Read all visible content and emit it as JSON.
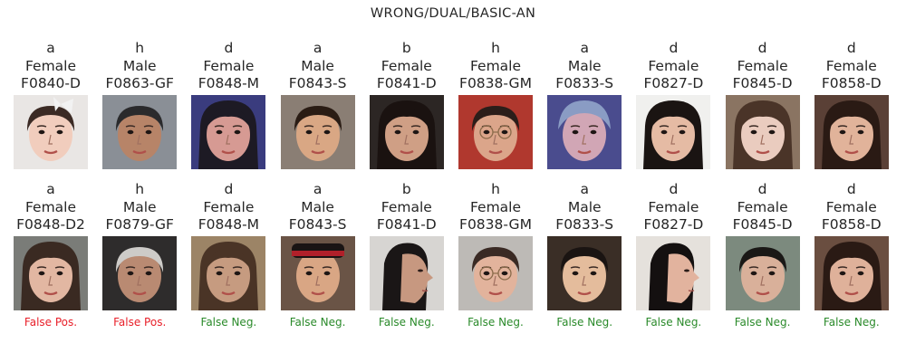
{
  "title": "WRONG/DUAL/BASIC-AN",
  "colors": {
    "false_pos": "#e8202a",
    "false_neg": "#2a8a2a",
    "text": "#262626"
  },
  "top_row": [
    {
      "label": "a",
      "gender": "Female",
      "id": "F0840-D"
    },
    {
      "label": "h",
      "gender": "Male",
      "id": "F0863-GF"
    },
    {
      "label": "d",
      "gender": "Female",
      "id": "F0848-M"
    },
    {
      "label": "a",
      "gender": "Male",
      "id": "F0843-S"
    },
    {
      "label": "b",
      "gender": "Female",
      "id": "F0841-D"
    },
    {
      "label": "h",
      "gender": "Female",
      "id": "F0838-GM"
    },
    {
      "label": "a",
      "gender": "Male",
      "id": "F0833-S"
    },
    {
      "label": "d",
      "gender": "Female",
      "id": "F0827-D"
    },
    {
      "label": "d",
      "gender": "Female",
      "id": "F0845-D"
    },
    {
      "label": "d",
      "gender": "Female",
      "id": "F0858-D"
    }
  ],
  "bottom_row": [
    {
      "label": "a",
      "gender": "Female",
      "id": "F0848-D2",
      "verdict": "False Pos.",
      "verdict_type": "false_pos"
    },
    {
      "label": "h",
      "gender": "Male",
      "id": "F0879-GF",
      "verdict": "False Pos.",
      "verdict_type": "false_pos"
    },
    {
      "label": "d",
      "gender": "Female",
      "id": "F0848-M",
      "verdict": "False Neg.",
      "verdict_type": "false_neg"
    },
    {
      "label": "a",
      "gender": "Male",
      "id": "F0843-S",
      "verdict": "False Neg.",
      "verdict_type": "false_neg"
    },
    {
      "label": "b",
      "gender": "Female",
      "id": "F0841-D",
      "verdict": "False Neg.",
      "verdict_type": "false_neg"
    },
    {
      "label": "h",
      "gender": "Female",
      "id": "F0838-GM",
      "verdict": "False Neg.",
      "verdict_type": "false_neg"
    },
    {
      "label": "a",
      "gender": "Male",
      "id": "F0833-S",
      "verdict": "False Neg.",
      "verdict_type": "false_neg"
    },
    {
      "label": "d",
      "gender": "Female",
      "id": "F0827-D",
      "verdict": "False Neg.",
      "verdict_type": "false_neg"
    },
    {
      "label": "d",
      "gender": "Female",
      "id": "F0845-D",
      "verdict": "False Neg.",
      "verdict_type": "false_neg"
    },
    {
      "label": "d",
      "gender": "Female",
      "id": "F0858-D",
      "verdict": "False Neg.",
      "verdict_type": "false_neg"
    }
  ],
  "faces_top": [
    {
      "bg": "#e9e6e4",
      "skin": "#f1cdbd",
      "hair": "#3b2a24",
      "style": "baby-bow"
    },
    {
      "bg": "#8a8f96",
      "skin": "#b78468",
      "hair": "#2a2a2c",
      "style": "short"
    },
    {
      "bg": "#3a3c7e",
      "skin": "#d69a93",
      "hair": "#1d1a24",
      "style": "long"
    },
    {
      "bg": "#8a7e74",
      "skin": "#d9a784",
      "hair": "#2a1c14",
      "style": "short"
    },
    {
      "bg": "#2c2624",
      "skin": "#cf9f85",
      "hair": "#1a1210",
      "style": "long"
    },
    {
      "bg": "#b0382e",
      "skin": "#dba58a",
      "hair": "#2b1e1a",
      "style": "glasses"
    },
    {
      "bg": "#4a4c8e",
      "skin": "#d1a6b5",
      "hair": "#8a9cc4",
      "style": "hat"
    },
    {
      "bg": "#f0f0ee",
      "skin": "#e5bba4",
      "hair": "#1a1412",
      "style": "long"
    },
    {
      "bg": "#8a7462",
      "skin": "#eaccbf",
      "hair": "#4a3428",
      "style": "long"
    },
    {
      "bg": "#5a4036",
      "skin": "#e1b39a",
      "hair": "#2a1a14",
      "style": "long"
    }
  ],
  "faces_bottom": [
    {
      "bg": "#7a7c78",
      "skin": "#e2b7a2",
      "hair": "#3a2a22",
      "style": "long"
    },
    {
      "bg": "#2e2c2c",
      "skin": "#b98a72",
      "hair": "#cdcbc8",
      "style": "short"
    },
    {
      "bg": "#9c8466",
      "skin": "#c69b80",
      "hair": "#4a3426",
      "style": "long"
    },
    {
      "bg": "#6a5446",
      "skin": "#d9a684",
      "hair": "#1a1414",
      "style": "band"
    },
    {
      "bg": "#d7d5d2",
      "skin": "#c79880",
      "hair": "#1a1616",
      "style": "profile"
    },
    {
      "bg": "#bdbab6",
      "skin": "#e2b39c",
      "hair": "#3a2a24",
      "style": "glasses"
    },
    {
      "bg": "#3a2e26",
      "skin": "#e4bc9c",
      "hair": "#1a1412",
      "style": "short"
    },
    {
      "bg": "#e5e1dc",
      "skin": "#e2b39e",
      "hair": "#141010",
      "style": "profile"
    },
    {
      "bg": "#7c8a7e",
      "skin": "#d9b09a",
      "hair": "#1a1816",
      "style": "short"
    },
    {
      "bg": "#6a4e40",
      "skin": "#dfb19a",
      "hair": "#2a1a14",
      "style": "long"
    }
  ]
}
